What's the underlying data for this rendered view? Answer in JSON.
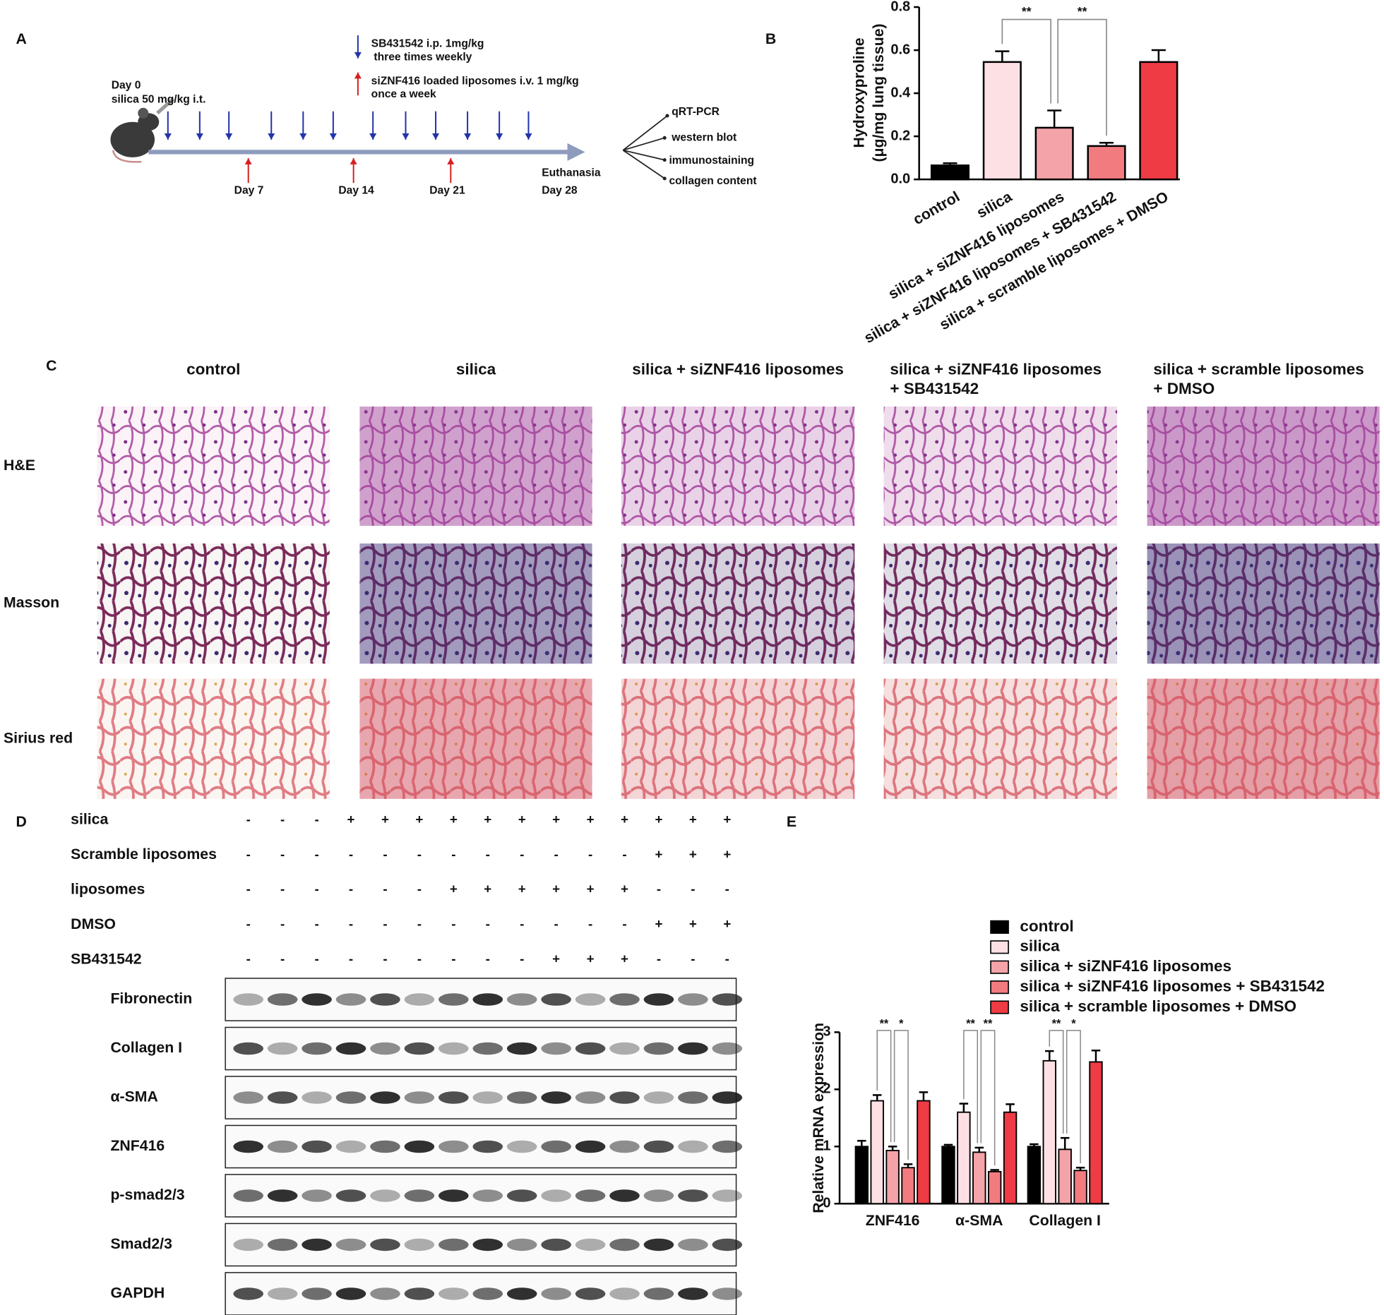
{
  "panel_a": {
    "label": "A",
    "legend_blue": [
      "SB431542 i.p. 1mg/kg",
      "three times weekly"
    ],
    "legend_red": [
      "siZNF416 loaded  liposomes  i.v. 1 mg/kg",
      "once a week"
    ],
    "start": [
      "Day 0",
      "silica 50 mg/kg i.t."
    ],
    "days": [
      "Day 7",
      "Day 14",
      "Day 21"
    ],
    "end": [
      "Euthanasia",
      "Day 28"
    ],
    "readouts": [
      "qRT-PCR",
      "western blot",
      "immunostaining",
      "collagen content"
    ]
  },
  "chart_data": [
    {
      "type": "bar",
      "label": "B",
      "ylabel": [
        "Hydroxyproline",
        "(μg/mg lung tissue)"
      ],
      "categories": [
        "control",
        "silica",
        "silica + siZNF416 liposomes",
        "silica + siZNF416 liposomes + SB431542",
        "silica + scramble liposomes + DMSO"
      ],
      "values": [
        0.065,
        0.545,
        0.24,
        0.155,
        0.545
      ],
      "errors": [
        0.01,
        0.05,
        0.08,
        0.015,
        0.055
      ],
      "colors": [
        "#000000",
        "#fde0e3",
        "#f4a3a8",
        "#f27b80",
        "#ee3b44"
      ],
      "ylim": [
        0,
        0.8
      ],
      "yticks": [
        {
          "value": 0,
          "label": "0.0"
        },
        0.2,
        0.4,
        0.6,
        0.8
      ],
      "annotations": [
        "**",
        "**"
      ]
    },
    {
      "type": "grouped_bar",
      "label": "E",
      "ylabel": "Relative mRNA expression",
      "categories": [
        "ZNF416",
        "α-SMA",
        "Collagen I"
      ],
      "series": [
        {
          "name": "control",
          "color": "#000000",
          "values": [
            1.0,
            1.0,
            1.0
          ],
          "errors": [
            0.1,
            0.03,
            0.04
          ]
        },
        {
          "name": "silica",
          "color": "#fde0e3",
          "values": [
            1.8,
            1.6,
            2.5
          ],
          "errors": [
            0.1,
            0.15,
            0.17
          ]
        },
        {
          "name": "silica + siZNF416 liposomes",
          "color": "#f4a3a8",
          "values": [
            0.93,
            0.9,
            0.95
          ],
          "errors": [
            0.07,
            0.08,
            0.2
          ]
        },
        {
          "name": "silica + siZNF416 liposomes + SB431542",
          "color": "#f27b80",
          "values": [
            0.63,
            0.56,
            0.58
          ],
          "errors": [
            0.06,
            0.03,
            0.05
          ]
        },
        {
          "name": "silica + scramble liposomes + DMSO",
          "color": "#ee3b44",
          "values": [
            1.8,
            1.6,
            2.48
          ],
          "errors": [
            0.15,
            0.14,
            0.2
          ]
        }
      ],
      "ylim": [
        0,
        3
      ],
      "yticks": [
        0,
        1,
        2,
        3
      ],
      "legend": "upper right",
      "annotations": [
        "**",
        "*",
        "**",
        "**",
        "**",
        "*"
      ]
    }
  ],
  "panel_c": {
    "label": "C",
    "columns": [
      [
        "control"
      ],
      [
        "silica"
      ],
      [
        "silica + siZNF416 liposomes"
      ],
      [
        "silica + siZNF416 liposomes",
        "+ SB431542"
      ],
      [
        "silica + scramble liposomes",
        "+ DMSO"
      ]
    ],
    "rows": [
      "H&E",
      "Masson",
      "Sirius red"
    ]
  },
  "panel_d": {
    "label": "D",
    "conditions": [
      {
        "name": "silica",
        "signs": [
          "-",
          "-",
          "-",
          "+",
          "+",
          "+",
          "+",
          "+",
          "+",
          "+",
          "+",
          "+",
          "+",
          "+",
          "+"
        ]
      },
      {
        "name": "Scramble liposomes",
        "signs": [
          "-",
          "-",
          "-",
          "-",
          "-",
          "-",
          "-",
          "-",
          "-",
          "-",
          "-",
          "-",
          "+",
          "+",
          "+"
        ]
      },
      {
        "name": "liposomes",
        "signs": [
          "-",
          "-",
          "-",
          "-",
          "-",
          "-",
          "+",
          "+",
          "+",
          "+",
          "+",
          "+",
          "-",
          "-",
          "-"
        ]
      },
      {
        "name": "DMSO",
        "signs": [
          "-",
          "-",
          "-",
          "-",
          "-",
          "-",
          "-",
          "-",
          "-",
          "-",
          "-",
          "-",
          "+",
          "+",
          "+"
        ]
      },
      {
        "name": "SB431542",
        "signs": [
          "-",
          "-",
          "-",
          "-",
          "-",
          "-",
          "-",
          "-",
          "-",
          "+",
          "+",
          "+",
          "-",
          "-",
          "-"
        ]
      }
    ],
    "blots": [
      "Fibronectin",
      "Collagen I",
      "α-SMA",
      "ZNF416",
      "p-smad2/3",
      "Smad2/3",
      "GAPDH"
    ]
  }
}
